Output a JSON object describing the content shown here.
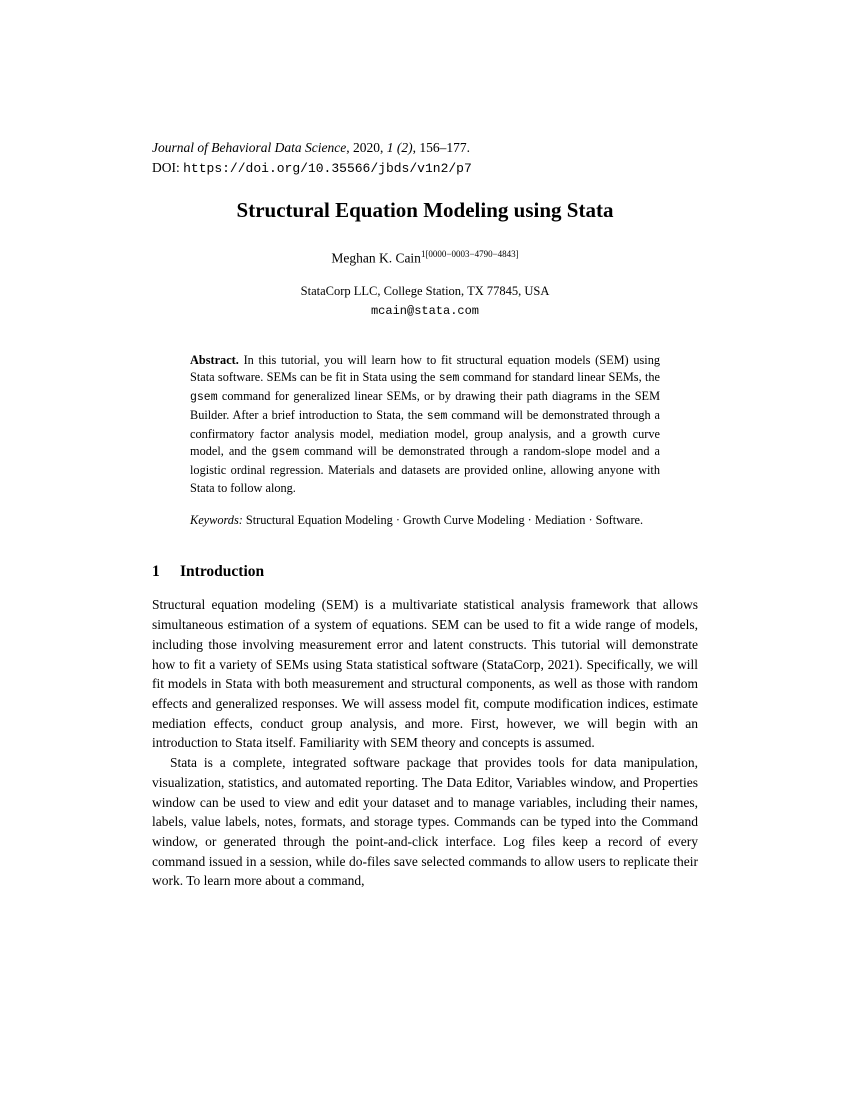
{
  "journal": {
    "name": "Journal of Behavioral Data Science",
    "year": "2020",
    "volume_issue": "1 (2)",
    "pages": "156–177."
  },
  "doi": {
    "label": "DOI: ",
    "url": "https://doi.org/10.35566/jbds/v1n2/p7"
  },
  "title": "Structural Equation Modeling using Stata",
  "author": {
    "name": "Meghan K. Cain",
    "sup": "1[0000−0003−4790−4843]"
  },
  "affiliation": {
    "line1": "StataCorp LLC, College Station, TX 77845, USA",
    "email": "mcain@stata.com"
  },
  "abstract": {
    "label": "Abstract.",
    "text_pre": " In this tutorial, you will learn how to fit structural equation models (SEM) using Stata software. SEMs can be fit in Stata using the ",
    "code1": "sem",
    "text_mid1": " command for standard linear SEMs, the ",
    "code2": "gsem",
    "text_mid2": " command for generalized linear SEMs, or by drawing their path diagrams in the SEM Builder. After a brief introduction to Stata, the ",
    "code3": "sem",
    "text_mid3": " command will be demonstrated through a confirmatory factor analysis model, mediation model, group analysis, and a growth curve model, and the ",
    "code4": "gsem",
    "text_post": " command will be demonstrated through a random-slope model and a logistic ordinal regression. Materials and datasets are provided online, allowing anyone with Stata to follow along."
  },
  "keywords": {
    "label": "Keywords:",
    "text": " Structural Equation Modeling · Growth Curve Modeling · Mediation · Software."
  },
  "section": {
    "number": "1",
    "title": "Introduction"
  },
  "para1": "Structural equation modeling (SEM) is a multivariate statistical analysis framework that allows simultaneous estimation of a system of equations. SEM can be used to fit a wide range of models, including those involving measurement error and latent constructs. This tutorial will demonstrate how to fit a variety of SEMs using Stata statistical software (StataCorp, 2021). Specifically, we will fit models in Stata with both measurement and structural components, as well as those with random effects and generalized responses. We will assess model fit, compute modification indices, estimate mediation effects, conduct group analysis, and more. First, however, we will begin with an introduction to Stata itself. Familiarity with SEM theory and concepts is assumed.",
  "para2": "Stata is a complete, integrated software package that provides tools for data manipulation, visualization, statistics, and automated reporting. The Data Editor, Variables window, and Properties window can be used to view and edit your dataset and to manage variables, including their names, labels, value labels, notes, formats, and storage types. Commands can be typed into the Command window, or generated through the point-and-click interface. Log files keep a record of every command issued in a session, while do-files save selected commands to allow users to replicate their work. To learn more about a command,"
}
